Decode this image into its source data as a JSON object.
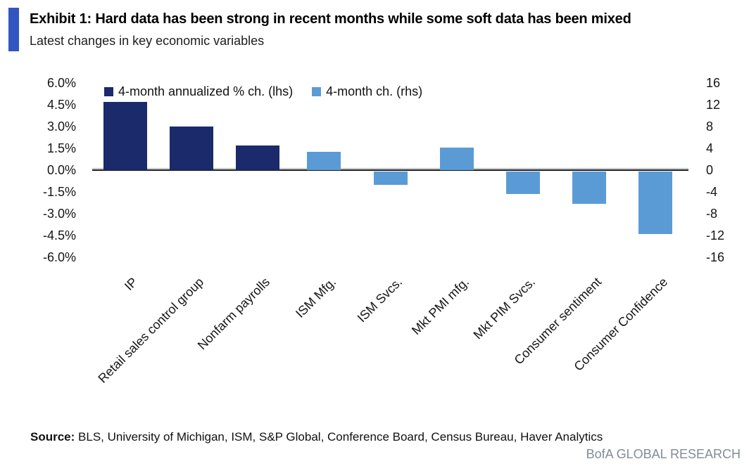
{
  "header": {
    "exhibit_title": "Exhibit 1: Hard data has been strong in recent months while some soft data has been mixed",
    "subtitle": "Latest changes in key economic variables"
  },
  "colors": {
    "navy": "#1b2a6b",
    "light_blue": "#5b9bd5",
    "accent_bar": "#3355c2",
    "brand_gray": "#828c98"
  },
  "chart_data": {
    "type": "bar",
    "title": "Latest changes in key economic variables",
    "categories": [
      "IP",
      "Retail sales control group",
      "Nonfarm payrolls",
      "ISM Mfg.",
      "ISM Svcs.",
      "Mkt PMI mfg.",
      "Mkt PIM Svcs.",
      "Consumer sentiment",
      "Consumer Confidence"
    ],
    "series": [
      {
        "name": "4-month annualized % ch. (lhs)",
        "axis": "left",
        "color": "#1b2a6b",
        "values": [
          4.7,
          3.0,
          1.7,
          null,
          null,
          null,
          null,
          null,
          null
        ]
      },
      {
        "name": "4-month ch. (rhs)",
        "axis": "right",
        "color": "#5b9bd5",
        "values": [
          null,
          null,
          null,
          3.3,
          -2.5,
          4.1,
          -4.1,
          -5.9,
          -11.5
        ]
      }
    ],
    "left_axis": {
      "max": 6,
      "min": -6,
      "tick_labels": [
        "6.0%",
        "4.5%",
        "3.0%",
        "1.5%",
        "0.0%",
        "-1.5%",
        "-3.0%",
        "-4.5%",
        "-6.0%"
      ]
    },
    "right_axis": {
      "max": 16,
      "min": -16,
      "tick_labels": [
        "16",
        "12",
        "8",
        "4",
        "0",
        "-4",
        "-8",
        "-12",
        "-16"
      ]
    },
    "legend_position": "top",
    "grid": false
  },
  "footer": {
    "source_label": "Source:",
    "source_text": " BLS, University of Michigan, ISM, S&P Global, Conference Board, Census Bureau, Haver Analytics",
    "brand": "BofA GLOBAL RESEARCH"
  }
}
